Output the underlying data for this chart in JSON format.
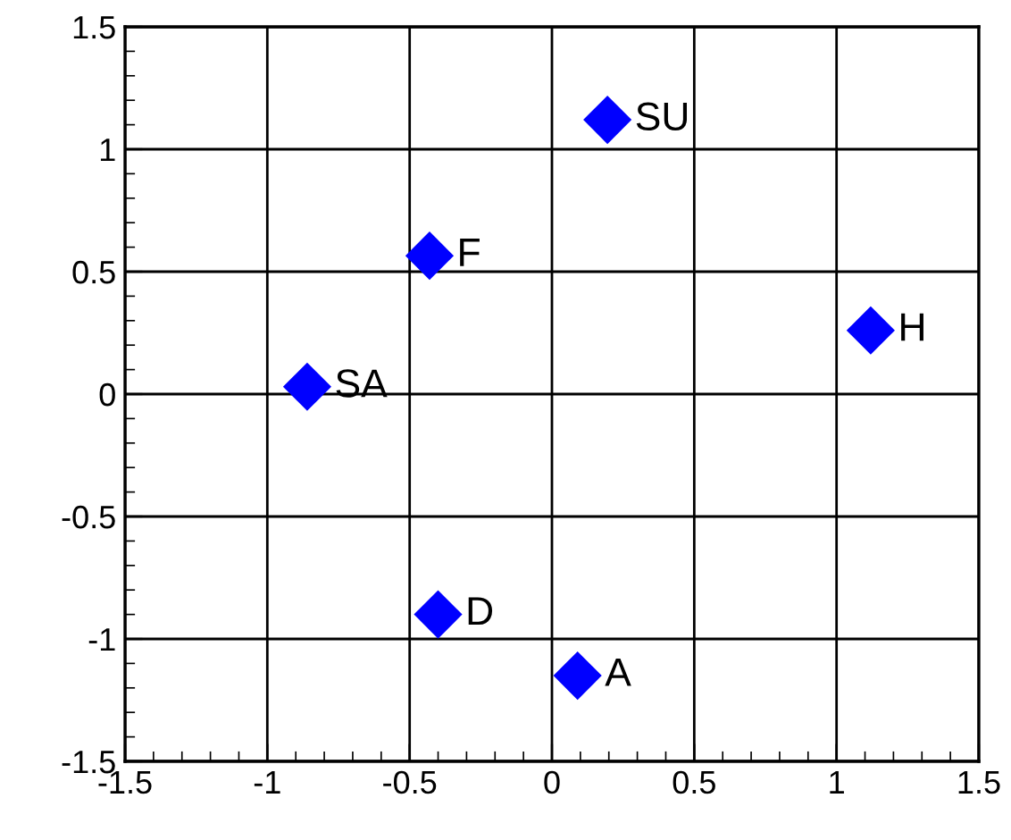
{
  "chart_data": {
    "type": "scatter",
    "x": [
      0.195,
      -0.43,
      1.12,
      -0.86,
      -0.4,
      0.09
    ],
    "series": [
      {
        "color": "#0000ff",
        "values": [
          1.12,
          0.565,
          0.26,
          0.03,
          -0.9,
          -1.15
        ]
      }
    ],
    "annotations": [
      {
        "text": "SU",
        "x": 0.195,
        "y": 1.12
      },
      {
        "text": "F",
        "x": -0.43,
        "y": 0.565
      },
      {
        "text": "H",
        "x": 1.12,
        "y": 0.26
      },
      {
        "text": "SA",
        "x": -0.86,
        "y": 0.03
      },
      {
        "text": "D",
        "x": -0.4,
        "y": -0.9
      },
      {
        "text": "A",
        "x": 0.09,
        "y": -1.15
      }
    ],
    "xlim": [
      -1.5,
      1.5
    ],
    "ylim": [
      -1.5,
      1.5
    ],
    "xticks": [
      -1.5,
      -1,
      -0.5,
      0,
      0.5,
      1,
      1.5
    ],
    "yticks": [
      -1.5,
      -1,
      -0.5,
      0,
      0.5,
      1,
      1.5
    ],
    "grid": true,
    "marker": "diamond"
  }
}
